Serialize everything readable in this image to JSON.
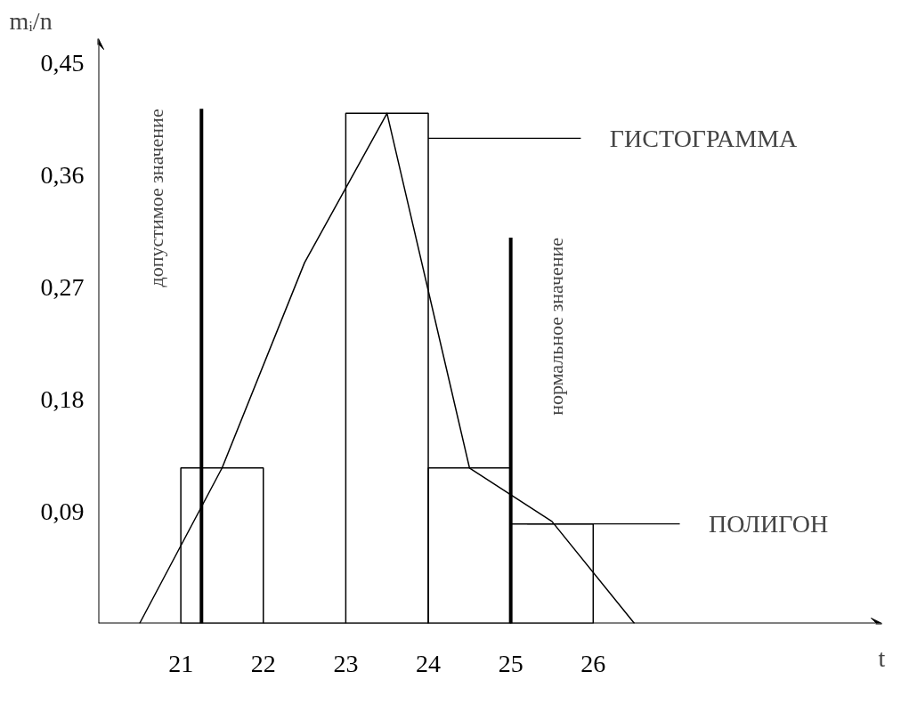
{
  "chart_data": {
    "type": "histogram",
    "xlabel": "t",
    "ylabel": "mᵢ/n",
    "bins": [
      21,
      22,
      23,
      24,
      25,
      26
    ],
    "values": [
      0.125,
      0,
      0.41,
      0.125,
      0.08
    ],
    "color": "#000000",
    "series": [
      {
        "type": "line",
        "color": "#000000",
        "x": [
          20.5,
          21.5,
          22.5,
          23.5,
          24.5,
          25.5,
          26.5
        ],
        "values": [
          0,
          0.125,
          0.29,
          0.41,
          0.125,
          0.082,
          0
        ]
      }
    ],
    "ref_lines": [
      {
        "axis": "x",
        "value": 21.25,
        "label": "допустимое значение",
        "color": "#000000"
      },
      {
        "axis": "x",
        "value": 25,
        "label": "нормальное значение",
        "color": "#000000"
      }
    ],
    "annotations": [
      {
        "text": "ГИСТОГРАММА",
        "x": 24,
        "y": 0.39
      },
      {
        "text": "ПОЛИГОН",
        "x": 25.2,
        "y": 0.08
      }
    ],
    "xlim": [
      20,
      29.5
    ],
    "ylim": [
      0,
      0.47
    ],
    "xticks": [
      21,
      22,
      23,
      24,
      25,
      26
    ],
    "yticks": [
      {
        "value": 0.09,
        "label": "0,09"
      },
      {
        "value": 0.18,
        "label": "0,18"
      },
      {
        "value": 0.27,
        "label": "0,27"
      },
      {
        "value": 0.36,
        "label": "0,36"
      },
      {
        "value": 0.45,
        "label": "0,45"
      }
    ],
    "grid": false
  }
}
